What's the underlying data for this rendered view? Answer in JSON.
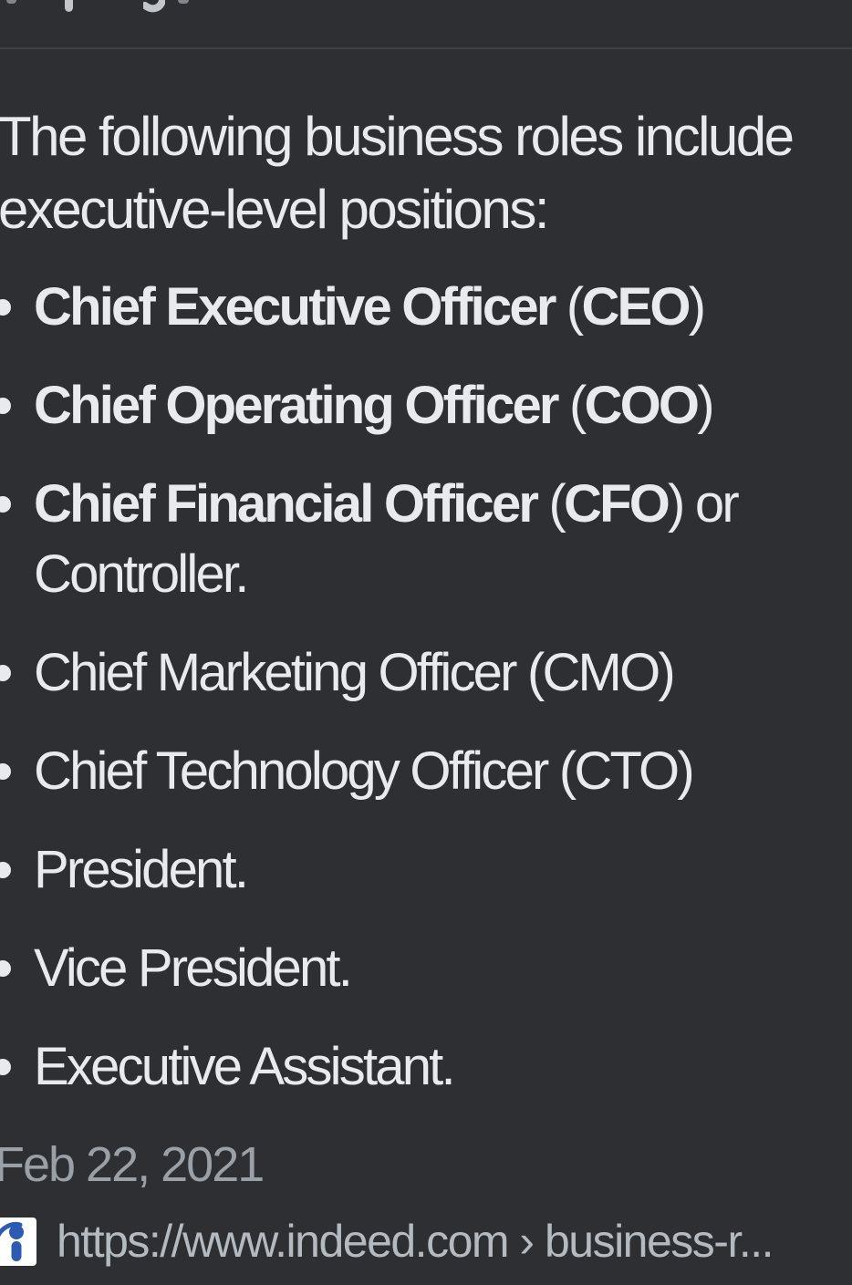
{
  "page": {
    "colors": {
      "bg": "#2d2f33",
      "divider": "#3d4145",
      "text": "#e8eaed",
      "muted": "#9aa0a6",
      "url": "#b5bac0",
      "fav_bg": "#ffffff",
      "fav_glyph": "#2d5bb4"
    }
  },
  "snippet": {
    "heading": [
      "The following business roles include",
      "executive-level positions:"
    ],
    "items": [
      {
        "segments": [
          {
            "text": "Chief Executive Officer",
            "bold": true
          },
          {
            "text": " (",
            "bold": false
          },
          {
            "text": "CEO",
            "bold": true
          },
          {
            "text": ")",
            "bold": false
          }
        ]
      },
      {
        "segments": [
          {
            "text": "Chief Operating Officer",
            "bold": true
          },
          {
            "text": " (",
            "bold": false
          },
          {
            "text": "COO",
            "bold": true
          },
          {
            "text": ")",
            "bold": false
          }
        ]
      },
      {
        "segments": [
          {
            "text": "Chief Financial Officer",
            "bold": true
          },
          {
            "text": " (",
            "bold": false
          },
          {
            "text": "CFO",
            "bold": true
          },
          {
            "text": ") or Controller.",
            "bold": false
          }
        ]
      },
      {
        "segments": [
          {
            "text": "Chief Marketing Officer (CMO)",
            "bold": false
          }
        ]
      },
      {
        "segments": [
          {
            "text": "Chief Technology Officer (CTO)",
            "bold": false
          }
        ]
      },
      {
        "segments": [
          {
            "text": "President.",
            "bold": false
          }
        ]
      },
      {
        "segments": [
          {
            "text": "Vice President.",
            "bold": false
          }
        ]
      },
      {
        "segments": [
          {
            "text": "Executive Assistant.",
            "bold": false
          }
        ]
      }
    ],
    "date": "Feb 22, 2021",
    "source": {
      "favicon": "indeed-favicon",
      "url": "https://www.indeed.com › business-r..."
    }
  }
}
